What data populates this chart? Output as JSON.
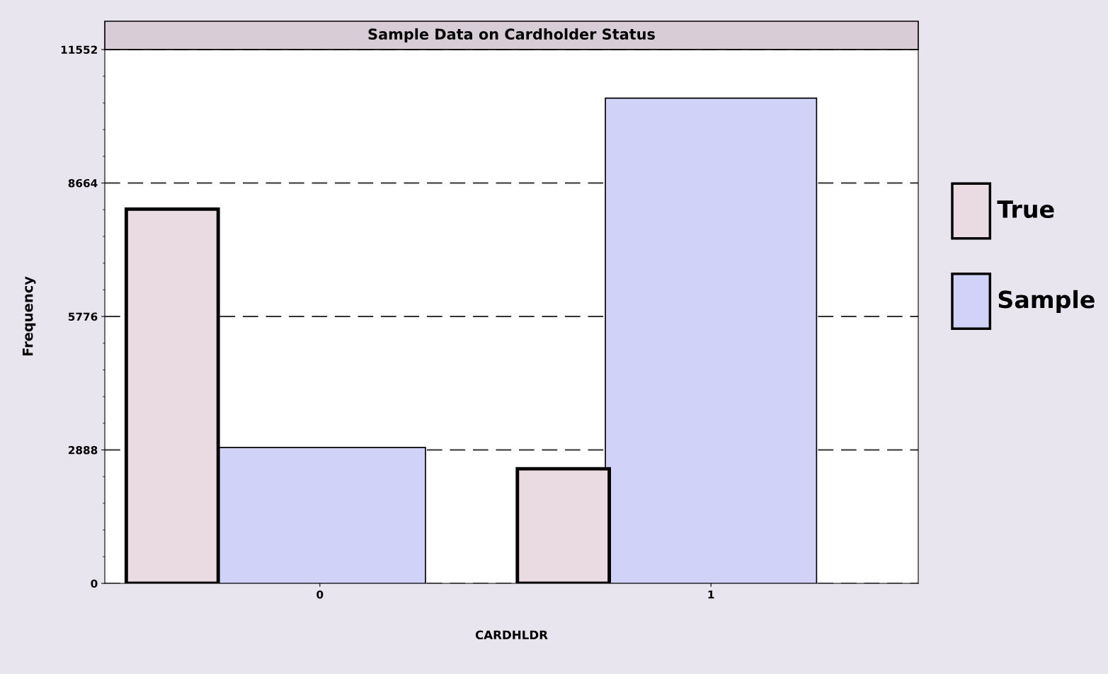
{
  "chart_data": {
    "type": "bar",
    "title": "Sample Data on Cardholder Status",
    "xlabel": "CARDHLDR",
    "ylabel": "Frequency",
    "categories": [
      "0",
      "1"
    ],
    "series": [
      {
        "name": "True",
        "color": "#eadbe2",
        "values": [
          8100,
          2480
        ]
      },
      {
        "name": "Sample",
        "color": "#d0d2f8",
        "values": [
          2940,
          10500
        ]
      }
    ],
    "ylim": [
      0,
      11552
    ],
    "yticks": [
      0,
      2888,
      5776,
      8664,
      11552
    ],
    "grid": "y",
    "line_style": "dashed",
    "legend": "right"
  }
}
